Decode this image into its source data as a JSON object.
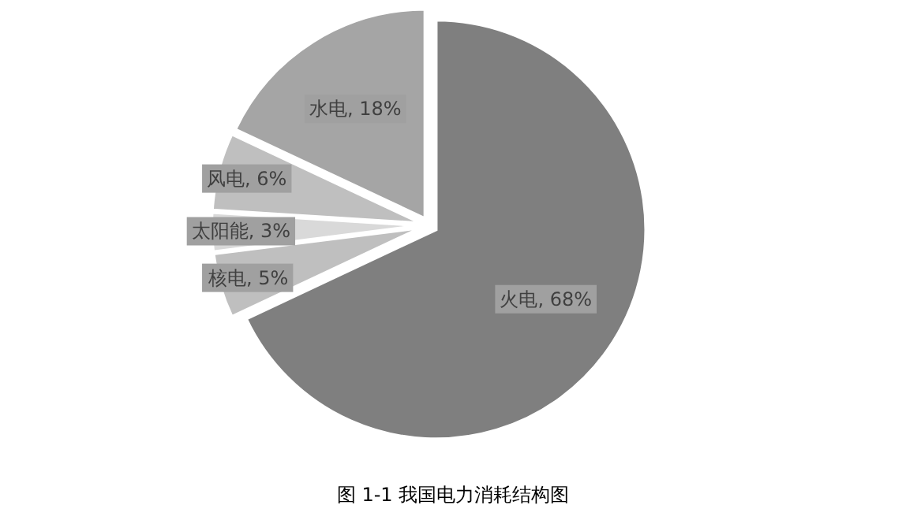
{
  "chart_data": {
    "type": "pie",
    "categories": [
      "火电",
      "核电",
      "太阳能",
      "风电",
      "水电"
    ],
    "values": [
      68,
      5,
      3,
      6,
      18
    ],
    "colors": [
      "#7f7f7f",
      "#bfbfbf",
      "#d9d9d9",
      "#bfbfbf",
      "#a5a5a5"
    ],
    "value_labels": [
      ", 68%",
      ", 5%",
      ", 3%",
      ", 6%",
      ", 18%"
    ],
    "annotations": [
      "图 1-1  我国电力消耗结构图"
    ]
  }
}
